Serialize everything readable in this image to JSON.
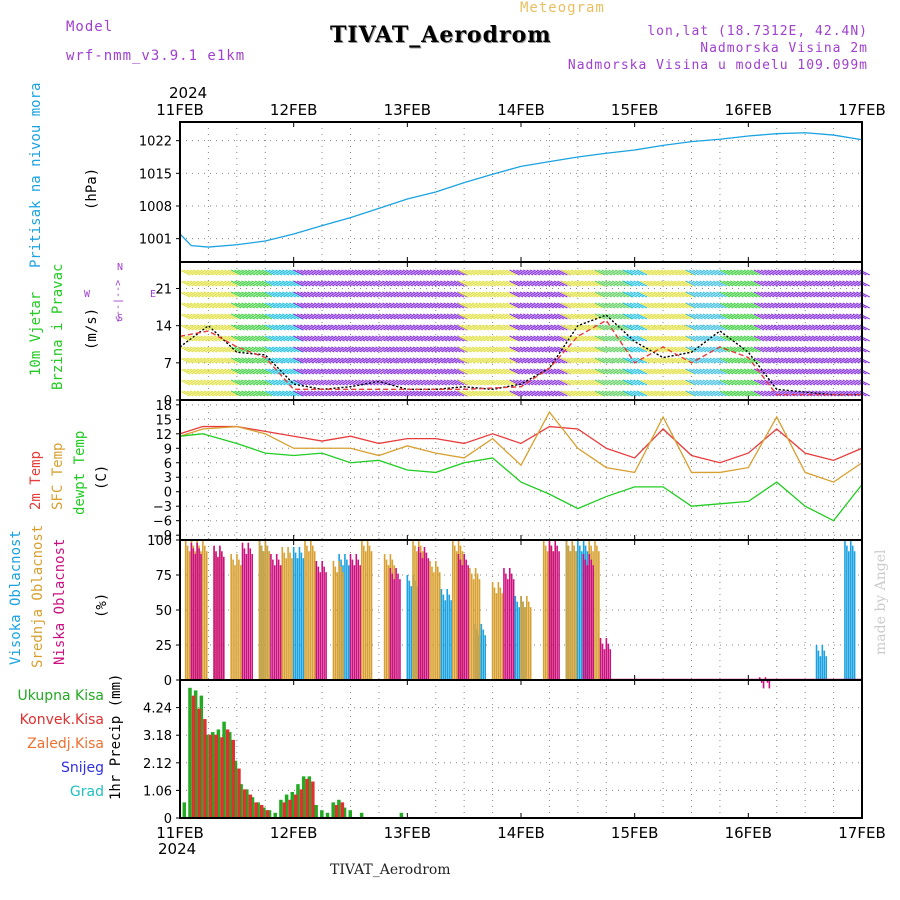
{
  "header": {
    "model_label": "Model",
    "model_name": "wrf-nmm_v3.9.1 e1km",
    "product": "Meteogram",
    "title": "TIVAT_Aerodrom",
    "coords": "lon,lat (18.7312E, 42.4N)",
    "elevation": "Nadmorska Visina 2m",
    "model_elevation": "Nadmorska Visina u modelu 109.099m",
    "year_top": "2024",
    "year_bottom": "2024",
    "footer": "TIVAT_Aerodrom",
    "watermark": "made by Angel"
  },
  "colors": {
    "pressure": "#1aa3e0",
    "temp2m": "#e83c3c",
    "sfc": "#d8a030",
    "dewpt": "#22cc22",
    "high_cloud": "#1aa3e0",
    "mid_cloud": "#d8a030",
    "low_cloud": "#cc1080",
    "total_precip": "#22aa22",
    "conv_precip": "#e03030",
    "frozen": "#f07030",
    "snow": "#3030e0",
    "hail": "#20c0c0",
    "model": "#a040d0"
  },
  "panel_labels": {
    "pressure": [
      "Pritisak na nivou mora",
      "(hPa)"
    ],
    "wind": [
      "10m Vjetar",
      "Brzina i Pravac",
      "(m/s)"
    ],
    "compass": [
      "N",
      "<--|-->",
      "E",
      "W",
      "S"
    ],
    "temp": [
      "2m Temp",
      "SFC Temp",
      "dewpt Temp",
      "(C)"
    ],
    "cloud": [
      "Visoka Oblacnost",
      "Srednja Oblacnost",
      "Niska Oblacnost",
      "(%)"
    ],
    "precip_axis": "1hr Precip (mm)",
    "precip_legend": [
      "Ukupna Kisa",
      "Konvek.Kisa",
      "Zaledj.Kisa",
      "Snijeg",
      "Grad"
    ]
  },
  "chart_data": [
    {
      "type": "line",
      "ylabel": "(hPa)",
      "ylim": [
        996,
        1026
      ],
      "yticks": [
        1001,
        1008,
        1015,
        1022
      ],
      "x_categories": [
        "11FEB",
        "12FEB",
        "13FEB",
        "14FEB",
        "15FEB",
        "16FEB",
        "17FEB"
      ],
      "series": [
        {
          "values": [
            [
              0,
              1002
            ],
            [
              0.1,
              999.5
            ],
            [
              0.25,
              999.2
            ],
            [
              0.5,
              999.7
            ],
            [
              0.75,
              1000.5
            ],
            [
              1,
              1002
            ],
            [
              1.25,
              1003.8
            ],
            [
              1.5,
              1005.5
            ],
            [
              1.75,
              1007.5
            ],
            [
              2,
              1009.5
            ],
            [
              2.25,
              1011
            ],
            [
              2.5,
              1013
            ],
            [
              2.75,
              1014.8
            ],
            [
              3,
              1016.5
            ],
            [
              3.25,
              1017.5
            ],
            [
              3.5,
              1018.5
            ],
            [
              3.75,
              1019.3
            ],
            [
              4,
              1020
            ],
            [
              4.25,
              1021
            ],
            [
              4.5,
              1021.8
            ],
            [
              4.75,
              1022.3
            ],
            [
              5,
              1023
            ],
            [
              5.25,
              1023.5
            ],
            [
              5.5,
              1023.7
            ],
            [
              5.75,
              1023.2
            ],
            [
              6,
              1022.2
            ]
          ]
        }
      ],
      "grid": true
    },
    {
      "type": "line",
      "ylabel": "(m/s)",
      "ylim": [
        0,
        26
      ],
      "yticks": [
        0,
        7,
        14,
        21
      ],
      "series": [
        {
          "values": [
            [
              0,
              10
            ],
            [
              0.25,
              14
            ],
            [
              0.5,
              9
            ],
            [
              0.75,
              8.5
            ],
            [
              1,
              3
            ],
            [
              1.25,
              2
            ],
            [
              1.5,
              2.5
            ],
            [
              1.75,
              3.5
            ],
            [
              2,
              2
            ],
            [
              2.25,
              2
            ],
            [
              2.5,
              2.5
            ],
            [
              2.75,
              2
            ],
            [
              3,
              3
            ],
            [
              3.25,
              6
            ],
            [
              3.5,
              14
            ],
            [
              3.75,
              16
            ],
            [
              4,
              11
            ],
            [
              4.25,
              8
            ],
            [
              4.5,
              9
            ],
            [
              4.75,
              13
            ],
            [
              5,
              9
            ],
            [
              5.25,
              2
            ],
            [
              5.5,
              1.5
            ],
            [
              5.75,
              1
            ],
            [
              6,
              1
            ]
          ]
        },
        {
          "values": [
            [
              0,
              12
            ],
            [
              0.25,
              13
            ],
            [
              0.5,
              10
            ],
            [
              0.75,
              8
            ],
            [
              1,
              2
            ],
            [
              1.5,
              2
            ],
            [
              2,
              2
            ],
            [
              2.5,
              2
            ],
            [
              3,
              2.5
            ],
            [
              3.25,
              6
            ],
            [
              3.5,
              12
            ],
            [
              3.75,
              15
            ],
            [
              4,
              7
            ],
            [
              4.25,
              10
            ],
            [
              4.5,
              7
            ],
            [
              4.75,
              10
            ],
            [
              5,
              8
            ],
            [
              5.25,
              1
            ],
            [
              5.75,
              1
            ],
            [
              6,
              1
            ]
          ]
        }
      ],
      "grid": true
    },
    {
      "type": "line",
      "ylabel": "(C)",
      "ylim": [
        -10,
        19
      ],
      "yticks": [
        -9,
        -6,
        -3,
        0,
        3,
        6,
        9,
        12,
        15,
        18
      ],
      "series": [
        {
          "values": [
            [
              0,
              12
            ],
            [
              0.2,
              13.5
            ],
            [
              0.5,
              13.5
            ],
            [
              0.75,
              12.5
            ],
            [
              1,
              11.5
            ],
            [
              1.25,
              10.5
            ],
            [
              1.5,
              11.5
            ],
            [
              1.75,
              10
            ],
            [
              2,
              11
            ],
            [
              2.25,
              11
            ],
            [
              2.5,
              10
            ],
            [
              2.75,
              12
            ],
            [
              3,
              10
            ],
            [
              3.25,
              13.5
            ],
            [
              3.5,
              13
            ],
            [
              3.75,
              9
            ],
            [
              4,
              7
            ],
            [
              4.25,
              13
            ],
            [
              4.5,
              7.5
            ],
            [
              4.75,
              6
            ],
            [
              5,
              8
            ],
            [
              5.25,
              13
            ],
            [
              5.5,
              8
            ],
            [
              5.75,
              6.5
            ],
            [
              6,
              9
            ]
          ]
        },
        {
          "values": [
            [
              0,
              11.5
            ],
            [
              0.2,
              13
            ],
            [
              0.5,
              13.5
            ],
            [
              0.75,
              12
            ],
            [
              1,
              9
            ],
            [
              1.25,
              9
            ],
            [
              1.5,
              9
            ],
            [
              1.75,
              7.5
            ],
            [
              2,
              9.5
            ],
            [
              2.25,
              8
            ],
            [
              2.5,
              7
            ],
            [
              2.75,
              11
            ],
            [
              3,
              5.5
            ],
            [
              3.25,
              16.5
            ],
            [
              3.5,
              9
            ],
            [
              3.75,
              5
            ],
            [
              4,
              4
            ],
            [
              4.25,
              15.5
            ],
            [
              4.5,
              4
            ],
            [
              4.75,
              4
            ],
            [
              5,
              5
            ],
            [
              5.25,
              15.5
            ],
            [
              5.5,
              4
            ],
            [
              5.75,
              2
            ],
            [
              6,
              6
            ]
          ]
        },
        {
          "values": [
            [
              0,
              11.5
            ],
            [
              0.2,
              12
            ],
            [
              0.5,
              10
            ],
            [
              0.75,
              8
            ],
            [
              1,
              7.5
            ],
            [
              1.25,
              8
            ],
            [
              1.5,
              6
            ],
            [
              1.75,
              6.5
            ],
            [
              2,
              4.5
            ],
            [
              2.25,
              4
            ],
            [
              2.5,
              6
            ],
            [
              2.75,
              7
            ],
            [
              3,
              2
            ],
            [
              3.25,
              -0.5
            ],
            [
              3.5,
              -3.5
            ],
            [
              3.75,
              -1
            ],
            [
              4,
              1
            ],
            [
              4.25,
              1
            ],
            [
              4.5,
              -3
            ],
            [
              4.75,
              -2.5
            ],
            [
              5,
              -2
            ],
            [
              5.25,
              2
            ],
            [
              5.5,
              -3
            ],
            [
              5.75,
              -6
            ],
            [
              6,
              1.5
            ]
          ]
        }
      ],
      "grid": true
    },
    {
      "type": "bar",
      "ylabel": "(%)",
      "ylim": [
        0,
        100
      ],
      "yticks": [
        0,
        25,
        50,
        75,
        100
      ],
      "series": [
        {
          "values": [
            [
              0.7,
              100
            ],
            [
              1.0,
              95
            ],
            [
              1.4,
              90
            ],
            [
              2.0,
              75
            ],
            [
              2.3,
              65
            ],
            [
              2.6,
              40
            ],
            [
              2.95,
              60
            ],
            [
              3.4,
              100
            ],
            [
              3.5,
              100
            ],
            [
              5.6,
              25
            ],
            [
              5.85,
              100
            ]
          ]
        },
        {
          "values": [
            [
              0.05,
              100
            ],
            [
              0.15,
              100
            ],
            [
              0.3,
              95
            ],
            [
              0.45,
              90
            ],
            [
              0.7,
              100
            ],
            [
              0.9,
              95
            ],
            [
              1.1,
              100
            ],
            [
              1.35,
              85
            ],
            [
              1.6,
              100
            ],
            [
              1.8,
              90
            ],
            [
              2.05,
              100
            ],
            [
              2.2,
              85
            ],
            [
              2.4,
              100
            ],
            [
              2.55,
              80
            ],
            [
              2.75,
              70
            ],
            [
              3.0,
              60
            ],
            [
              3.2,
              100
            ],
            [
              3.4,
              100
            ],
            [
              3.6,
              100
            ]
          ]
        },
        {
          "values": [
            [
              0.1,
              98
            ],
            [
              0.3,
              96
            ],
            [
              0.55,
              98
            ],
            [
              0.8,
              90
            ],
            [
              1.2,
              85
            ],
            [
              1.5,
              90
            ],
            [
              1.85,
              80
            ],
            [
              2.1,
              95
            ],
            [
              2.45,
              90
            ],
            [
              2.85,
              80
            ],
            [
              3.25,
              100
            ],
            [
              3.55,
              90
            ],
            [
              3.7,
              30
            ],
            [
              5.1,
              2
            ]
          ]
        }
      ],
      "grid": true
    },
    {
      "type": "bar",
      "ylabel": "1hr Precip (mm)",
      "ylim": [
        0,
        5.3
      ],
      "yticks": [
        0,
        1.06,
        2.12,
        3.18,
        4.24
      ],
      "series": [
        {
          "values": [
            [
              0.04,
              0.6
            ],
            [
              0.09,
              5.0
            ],
            [
              0.14,
              4.9
            ],
            [
              0.19,
              4.7
            ],
            [
              0.24,
              3.2
            ],
            [
              0.29,
              3.3
            ],
            [
              0.34,
              3.4
            ],
            [
              0.39,
              3.7
            ],
            [
              0.44,
              3.3
            ],
            [
              0.49,
              2.2
            ],
            [
              0.54,
              1.3
            ],
            [
              0.59,
              1.1
            ],
            [
              0.64,
              0.8
            ],
            [
              0.69,
              0.6
            ],
            [
              0.74,
              0.4
            ],
            [
              0.79,
              0.3
            ],
            [
              0.84,
              0.2
            ],
            [
              0.89,
              0.7
            ],
            [
              0.94,
              0.9
            ],
            [
              0.99,
              1.0
            ],
            [
              1.04,
              1.3
            ],
            [
              1.09,
              1.6
            ],
            [
              1.14,
              1.6
            ],
            [
              1.2,
              0.5
            ],
            [
              1.25,
              0.3
            ],
            [
              1.3,
              0.2
            ],
            [
              1.35,
              0.6
            ],
            [
              1.4,
              0.7
            ],
            [
              1.45,
              0.4
            ],
            [
              1.5,
              0.3
            ],
            [
              1.6,
              0.2
            ],
            [
              1.95,
              0.2
            ]
          ]
        },
        {
          "values": [
            [
              0.09,
              4.7
            ],
            [
              0.14,
              4.2
            ],
            [
              0.19,
              3.8
            ],
            [
              0.24,
              3.2
            ],
            [
              0.29,
              3.2
            ],
            [
              0.34,
              3.1
            ],
            [
              0.39,
              3.4
            ],
            [
              0.44,
              3.0
            ],
            [
              0.49,
              1.9
            ],
            [
              0.54,
              1.1
            ],
            [
              0.59,
              0.9
            ],
            [
              0.64,
              0.6
            ],
            [
              0.69,
              0.5
            ],
            [
              0.74,
              0.3
            ],
            [
              0.89,
              0.6
            ],
            [
              0.94,
              0.7
            ],
            [
              0.99,
              0.9
            ],
            [
              1.04,
              1.1
            ],
            [
              1.09,
              1.5
            ],
            [
              1.14,
              1.4
            ],
            [
              1.35,
              0.5
            ],
            [
              1.4,
              0.6
            ]
          ]
        }
      ],
      "grid": true
    }
  ]
}
